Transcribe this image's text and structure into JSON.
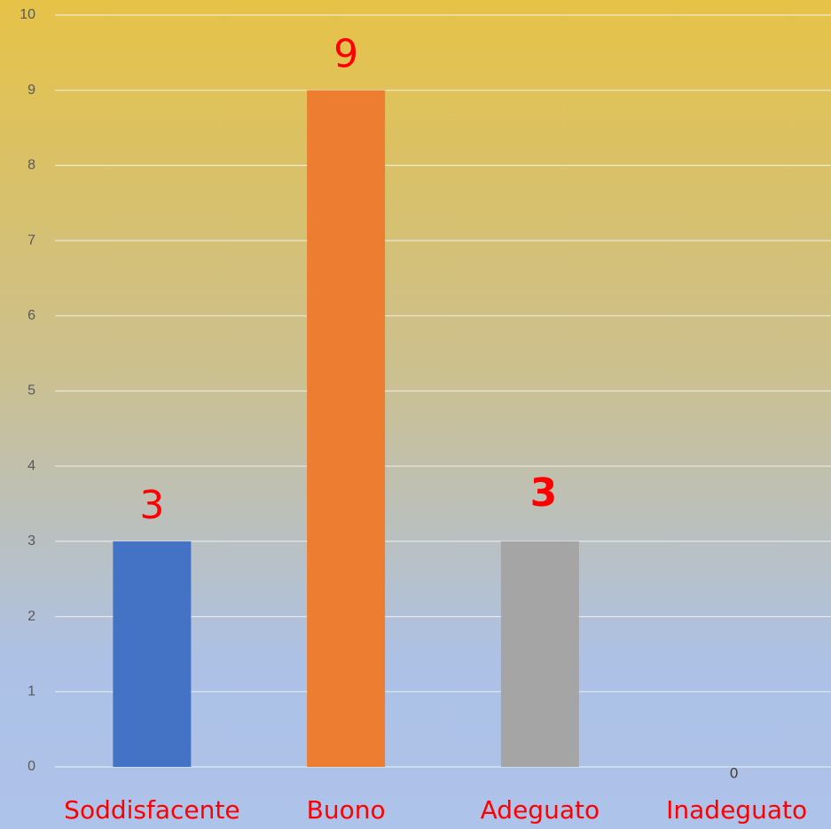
{
  "chart_data": {
    "type": "bar",
    "categories": [
      "Soddisfacente",
      "Buono",
      "Adeguato",
      "Inadeguato"
    ],
    "values": [
      3,
      9,
      3,
      0
    ],
    "colors": [
      "#4472c4",
      "#ed7d31",
      "#a5a5a5",
      "#ffc000"
    ],
    "ylim": [
      0,
      10
    ],
    "yticks": [
      0,
      1,
      2,
      3,
      4,
      5,
      6,
      7,
      8,
      9,
      10
    ],
    "grid": true
  }
}
